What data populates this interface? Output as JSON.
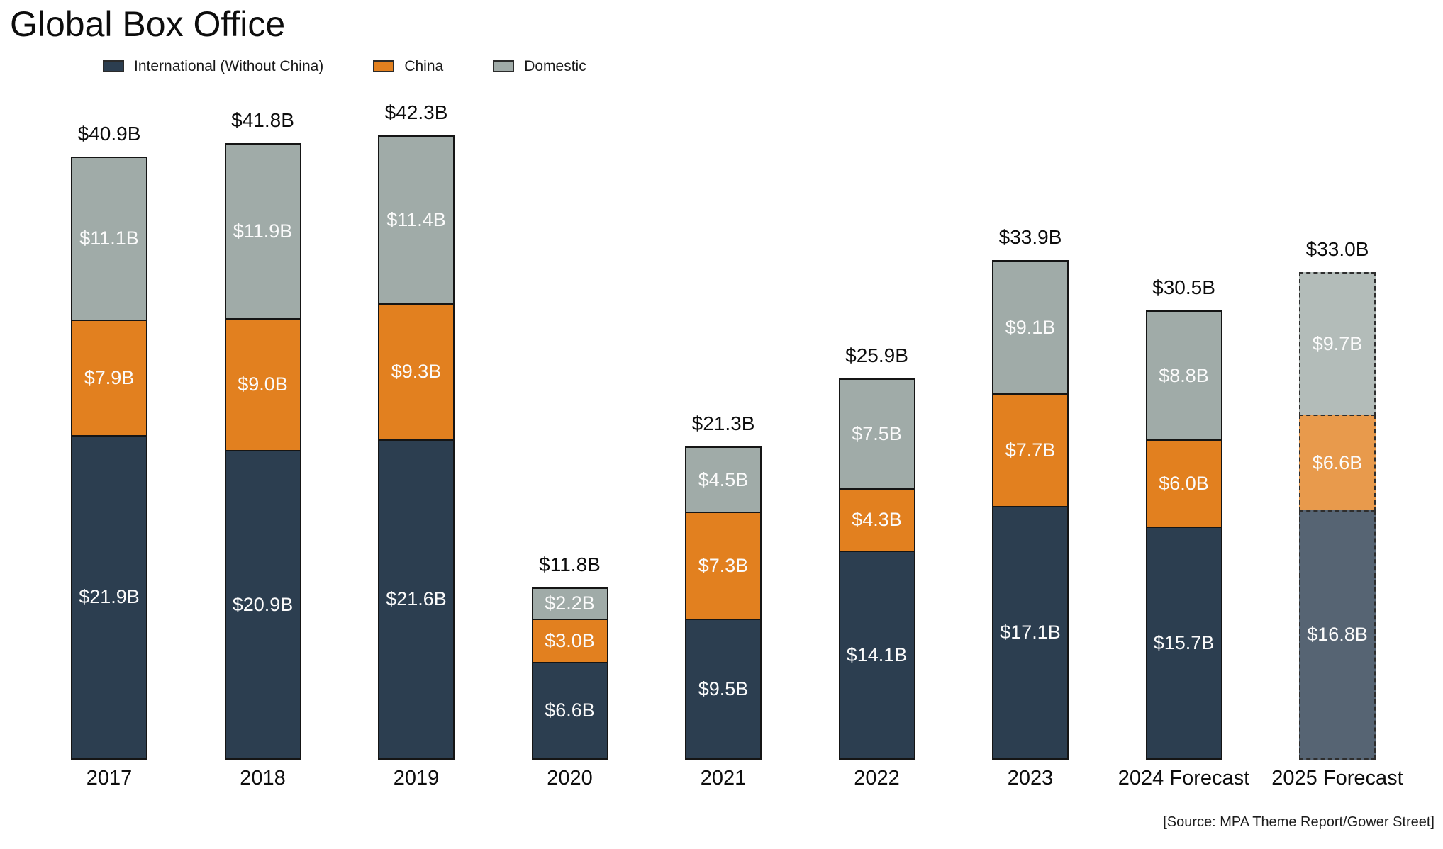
{
  "title": "Global Box Office",
  "source": "[Source: MPA Theme Report/Gower Street]",
  "colors": {
    "international": "#2c3e50",
    "china": "#e2801f",
    "domestic": "#a0aba8",
    "international_faded": "#566473",
    "china_faded": "#e89a4c",
    "domestic_faded": "#b3bcb9"
  },
  "legend": [
    {
      "label": "International (Without China)",
      "color_key": "international"
    },
    {
      "label": "China",
      "color_key": "china"
    },
    {
      "label": "Domestic",
      "color_key": "domestic"
    }
  ],
  "chart_data": {
    "type": "bar",
    "stacked": true,
    "unit": "USD billions",
    "grid": false,
    "legend_position": "top-left",
    "ylim": [
      0,
      45
    ],
    "categories": [
      "2017",
      "2018",
      "2019",
      "2020",
      "2021",
      "2022",
      "2023",
      "2024 Forecast",
      "2025 Forecast"
    ],
    "series": [
      {
        "name": "International (Without China)",
        "color_key": "international",
        "values": [
          21.9,
          20.9,
          21.6,
          6.6,
          9.5,
          14.1,
          17.1,
          15.7,
          16.8
        ],
        "labels": [
          "$21.9B",
          "$20.9B",
          "$21.6B",
          "$6.6B",
          "$9.5B",
          "$14.1B",
          "$17.1B",
          "$15.7B",
          "$16.8B"
        ]
      },
      {
        "name": "China",
        "color_key": "china",
        "values": [
          7.9,
          9.0,
          9.3,
          3.0,
          7.3,
          4.3,
          7.7,
          6.0,
          6.6
        ],
        "labels": [
          "$7.9B",
          "$9.0B",
          "$9.3B",
          "$3.0B",
          "$7.3B",
          "$4.3B",
          "$7.7B",
          "$6.0B",
          "$6.6B"
        ]
      },
      {
        "name": "Domestic",
        "color_key": "domestic",
        "values": [
          11.1,
          11.9,
          11.4,
          2.2,
          4.5,
          7.5,
          9.1,
          8.8,
          9.7
        ],
        "labels": [
          "$11.1B",
          "$11.9B",
          "$11.4B",
          "$2.2B",
          "$4.5B",
          "$7.5B",
          "$9.1B",
          "$8.8B",
          "$9.7B"
        ]
      }
    ],
    "totals": [
      40.9,
      41.8,
      42.3,
      11.8,
      21.3,
      25.9,
      33.9,
      30.5,
      33.0
    ],
    "total_labels": [
      "$40.9B",
      "$41.8B",
      "$42.3B",
      "$11.8B",
      "$21.3B",
      "$25.9B",
      "$33.9B",
      "$30.5B",
      "$33.0B"
    ],
    "faded_dashed_category": "2025 Forecast"
  }
}
